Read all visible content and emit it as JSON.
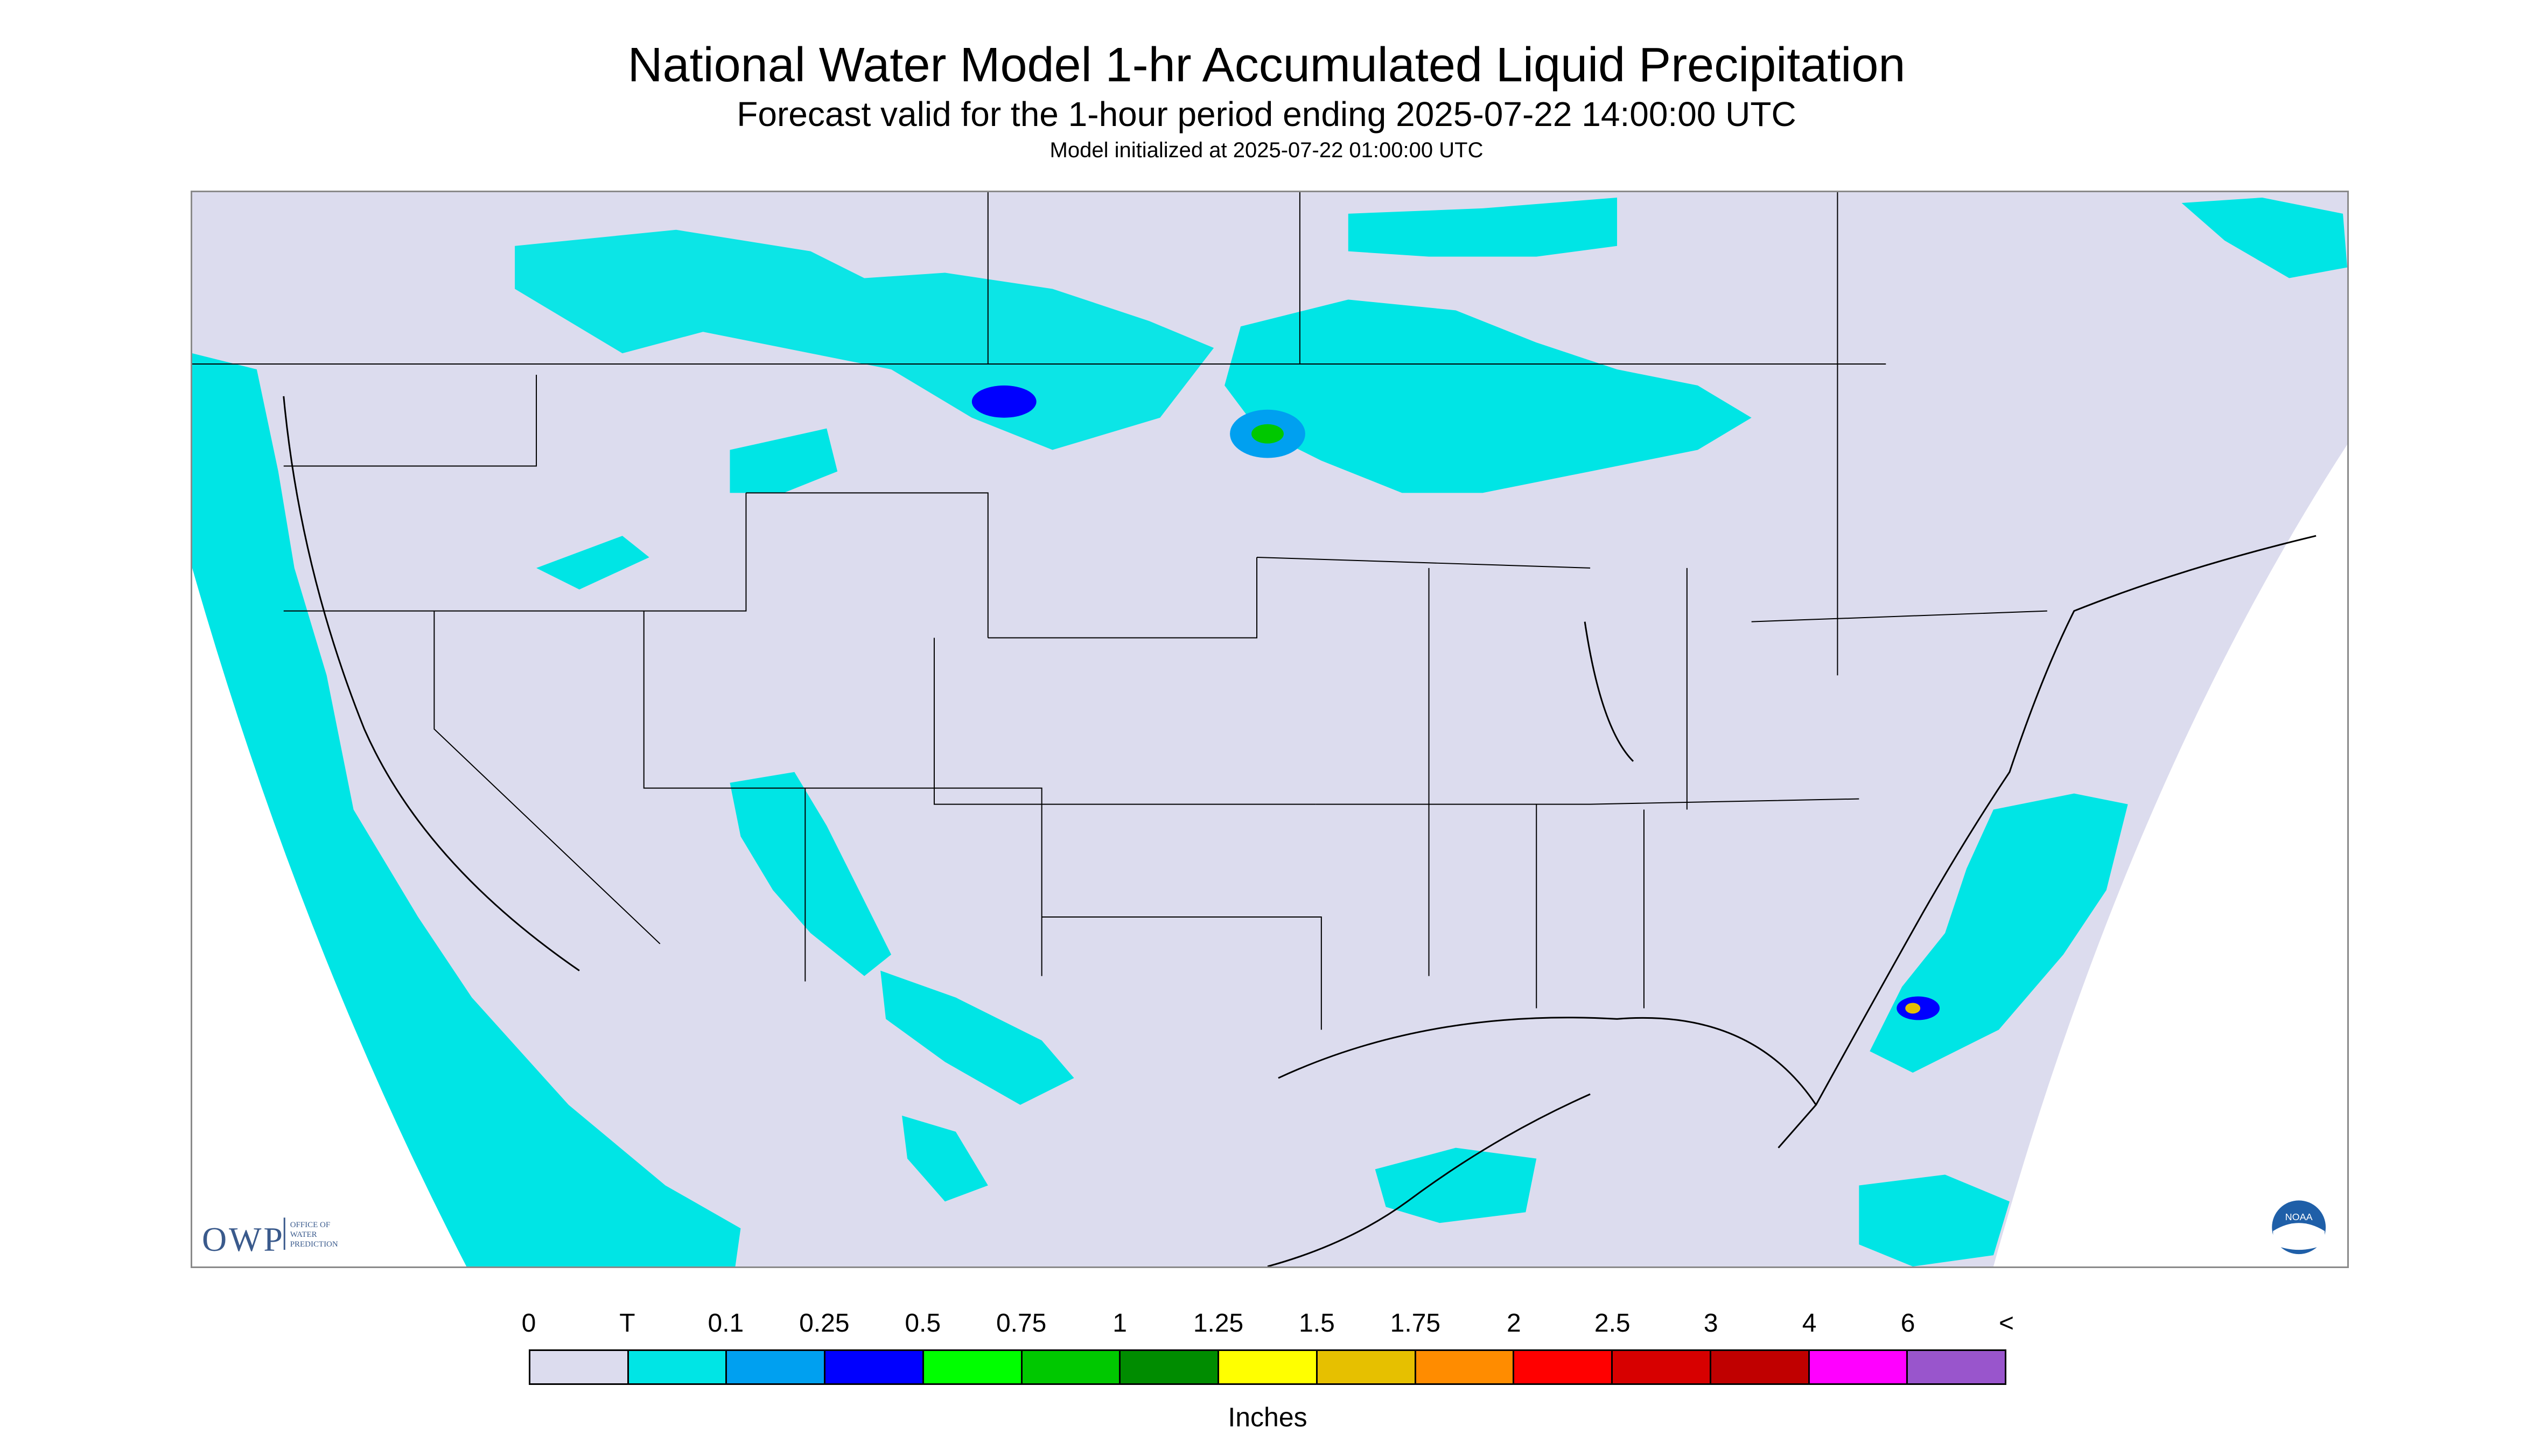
{
  "title": "National Water Model 1-hr Accumulated Liquid Precipitation",
  "subtitle": "Forecast valid for the 1-hour period ending 2025-07-22 14:00:00 UTC",
  "init_text": "Model initialized at 2025-07-22 01:00:00 UTC",
  "logos": {
    "owp_mark": "OWP",
    "owp_text_1": "OFFICE OF",
    "owp_text_2": "WATER",
    "owp_text_3": "PREDICTION",
    "noaa": "NOAA"
  },
  "colors": {
    "no_data_background": "#dcdcee",
    "state_borders": "#000000",
    "trace": "#00e5e5"
  },
  "legend": {
    "labels": [
      "0",
      "T",
      "0.1",
      "0.25",
      "0.5",
      "0.75",
      "1",
      "1.25",
      "1.5",
      "1.75",
      "2",
      "2.5",
      "3",
      "4",
      "6",
      "<"
    ],
    "colors": [
      "#dcdcee",
      "#00e5e5",
      "#00a0f0",
      "#0000ff",
      "#00ff00",
      "#00c800",
      "#008c00",
      "#ffff00",
      "#e6c000",
      "#ff8c00",
      "#ff0000",
      "#d70000",
      "#c00000",
      "#ff00ff",
      "#9955cc"
    ],
    "units": "Inches"
  }
}
